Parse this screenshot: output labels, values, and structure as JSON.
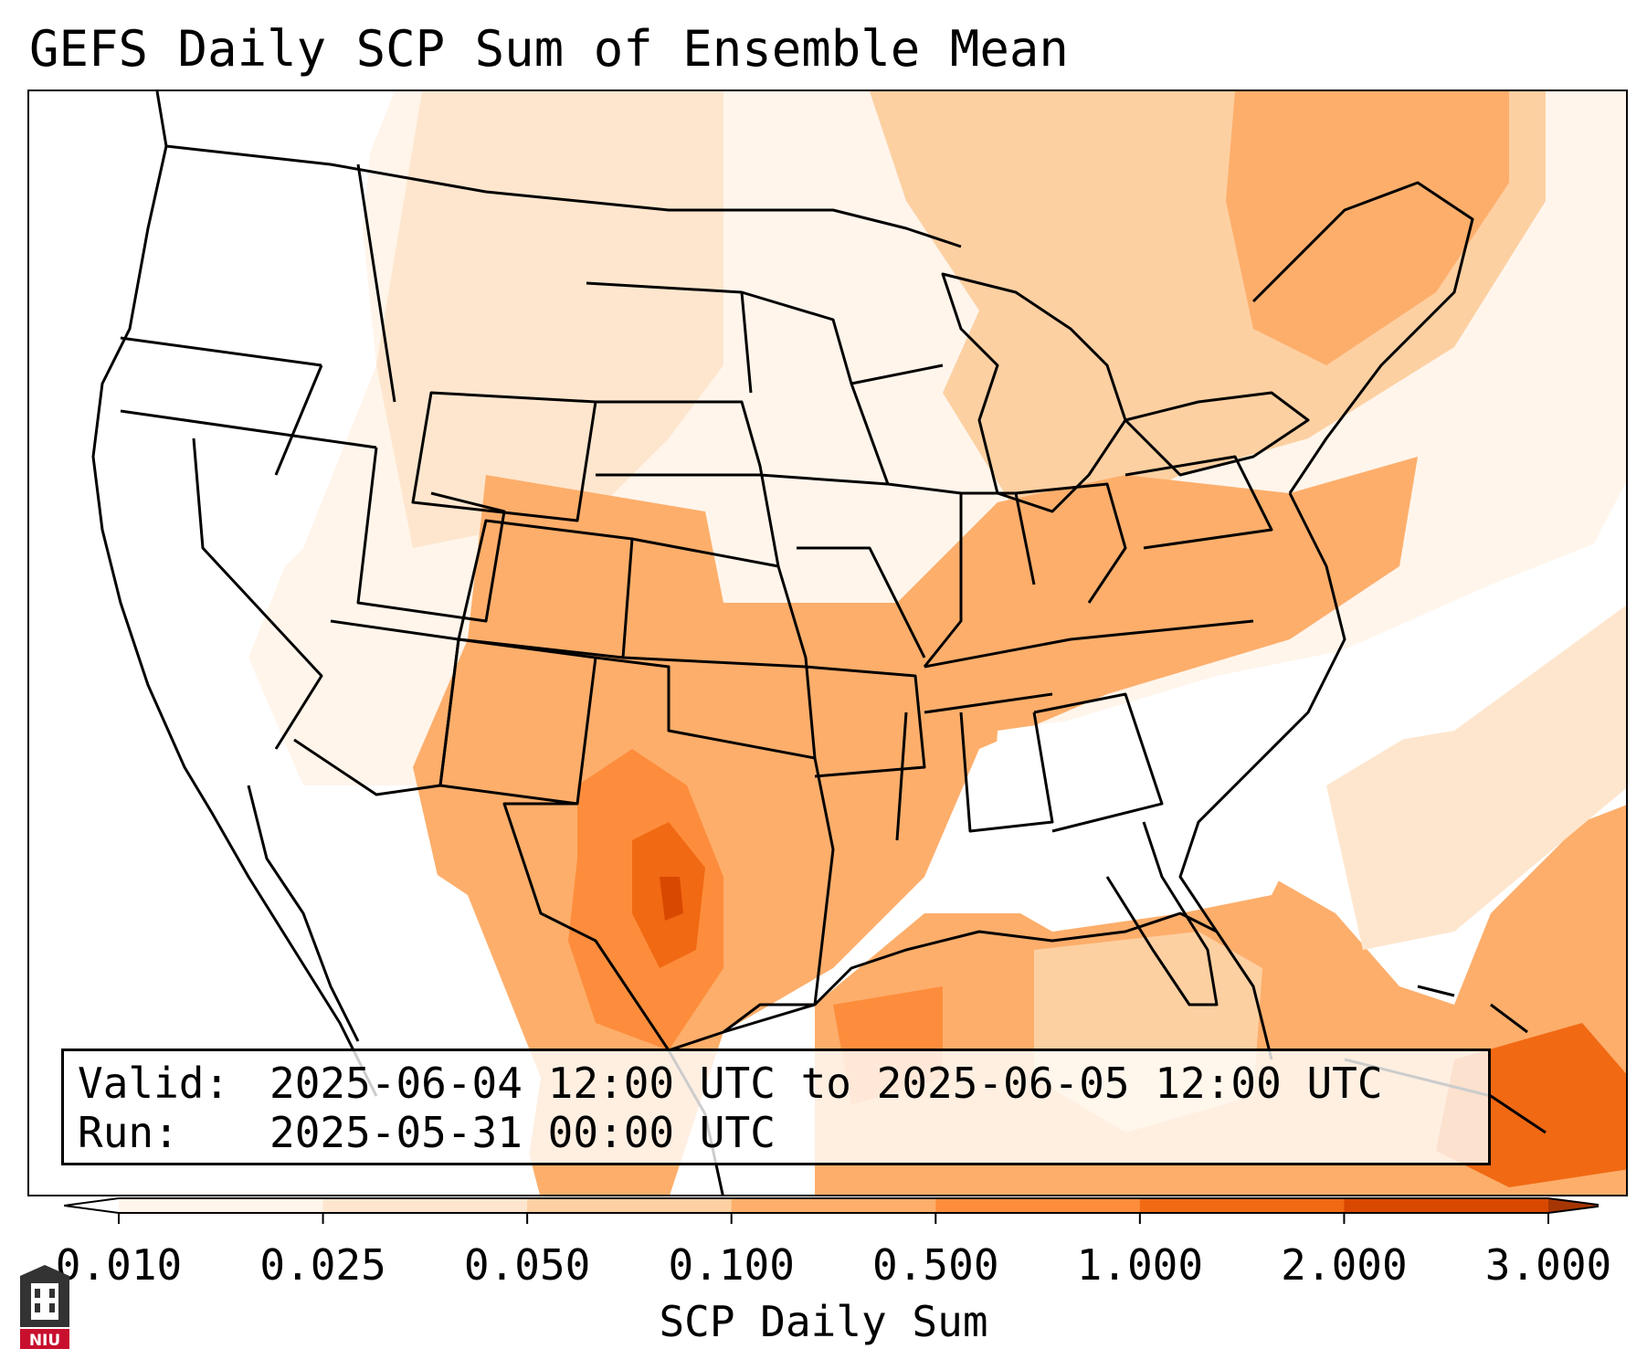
{
  "title": "GEFS Daily SCP Sum of Ensemble Mean",
  "info": {
    "valid_label": "Valid:",
    "valid_value": "2025-06-04 12:00 UTC to 2025-06-05 12:00 UTC",
    "run_label": "Run:",
    "run_value": "2025-05-31 00:00 UTC"
  },
  "colorbar": {
    "label": "SCP Daily Sum",
    "ticks": [
      "0.010",
      "0.025",
      "0.050",
      "0.100",
      "0.500",
      "1.000",
      "2.000",
      "3.000"
    ],
    "colors": [
      "#fff5eb",
      "#fee6ce",
      "#fdd0a2",
      "#fdae6b",
      "#fd8d3c",
      "#f16913",
      "#d94801",
      "#a63603"
    ]
  },
  "logo": {
    "text": "NIU",
    "color": "#c8102e"
  }
}
